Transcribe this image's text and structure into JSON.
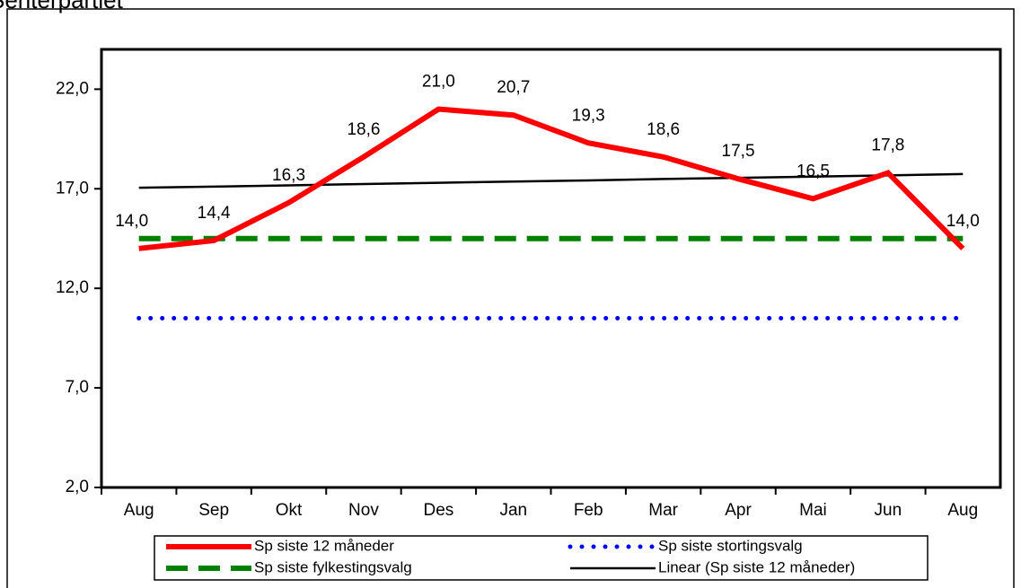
{
  "chart_data": {
    "type": "line",
    "title": "Senterpartiet",
    "categories": [
      "Aug",
      "Sep",
      "Okt",
      "Nov",
      "Des",
      "Jan",
      "Feb",
      "Mar",
      "Apr",
      "Mai",
      "Jun",
      "Aug"
    ],
    "series": [
      {
        "name": "Sp siste 12 måneder",
        "color": "#ff0000",
        "style": "solid",
        "values": [
          14.0,
          14.4,
          16.3,
          18.6,
          21.0,
          20.7,
          19.3,
          18.6,
          17.5,
          16.5,
          17.8,
          14.0
        ],
        "value_labels": [
          "14,0",
          "14,4",
          "16,3",
          "18,6",
          "21,0",
          "20,7",
          "19,3",
          "18,6",
          "17,5",
          "16,5",
          "17,8",
          "14,0"
        ]
      },
      {
        "name": "Sp siste stortingsvalg",
        "color": "#0000ff",
        "style": "dotted",
        "values": [
          10.5,
          10.5,
          10.5,
          10.5,
          10.5,
          10.5,
          10.5,
          10.5,
          10.5,
          10.5,
          10.5,
          10.5
        ]
      },
      {
        "name": "Sp siste fylkestingsvalg",
        "color": "#008000",
        "style": "dashed",
        "values": [
          14.5,
          14.5,
          14.5,
          14.5,
          14.5,
          14.5,
          14.5,
          14.5,
          14.5,
          14.5,
          14.5,
          14.5
        ]
      },
      {
        "name": "Linear (Sp siste 12 måneder)",
        "color": "#000000",
        "style": "thin",
        "values": [
          17.05,
          17.11,
          17.17,
          17.24,
          17.3,
          17.36,
          17.42,
          17.49,
          17.55,
          17.61,
          17.67,
          17.74
        ]
      }
    ],
    "ylim": [
      2,
      24
    ],
    "yticks": [
      {
        "value": 2,
        "label": "2,0"
      },
      {
        "value": 7,
        "label": "7,0"
      },
      {
        "value": 12,
        "label": "12,0"
      },
      {
        "value": 17,
        "label": "17,0"
      },
      {
        "value": 22,
        "label": "22,0"
      }
    ],
    "grid": false,
    "legend": "bottom"
  }
}
